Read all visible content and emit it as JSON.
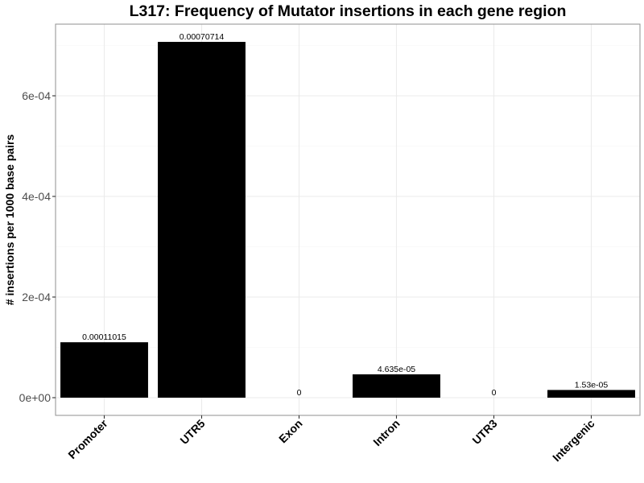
{
  "chart_data": {
    "type": "bar",
    "title": "L317: Frequency of Mutator insertions in each gene region",
    "xlabel": "",
    "ylabel": "# insertions per 1000 base pairs",
    "categories": [
      "Promoter",
      "UTR5",
      "Exon",
      "Intron",
      "UTR3",
      "Intergenic"
    ],
    "values": [
      0.00011015,
      0.00070714,
      0,
      4.635e-05,
      0,
      1.53e-05
    ],
    "value_labels": [
      "0.00011015",
      "0.00070714",
      "0",
      "4.635e-05",
      "0",
      "1.53e-05"
    ],
    "ylim": [
      0,
      0.00075
    ],
    "yticks": [
      0,
      0.0002,
      0.0004,
      0.0006
    ],
    "ytick_labels": [
      "0e+00",
      "2e-04",
      "4e-04",
      "6e-04"
    ],
    "grid": true,
    "bar_color": "#000000",
    "panel_border_color": "#999999",
    "grid_major_color": "#ebebeb",
    "grid_minor_color": "#f5f5f5"
  }
}
